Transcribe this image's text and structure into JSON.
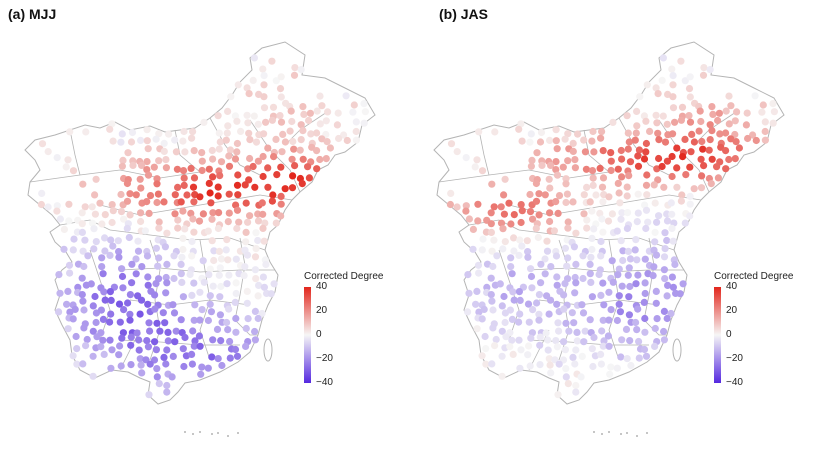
{
  "panels": [
    {
      "id": "mjj",
      "title": "(a) MJJ",
      "pattern": "mjj"
    },
    {
      "id": "jas",
      "title": "(b) JAS",
      "pattern": "jas"
    }
  ],
  "legend": {
    "title": "Corrected Degree",
    "ticks": [
      "40",
      "20",
      "0",
      "−20",
      "−40"
    ],
    "range": [
      -40,
      40
    ],
    "colors": {
      "high": "#e2261c",
      "mid": "#f6f6f6",
      "low": "#5529e0"
    }
  },
  "map_style": {
    "border_color": "#b4b4b4"
  }
}
